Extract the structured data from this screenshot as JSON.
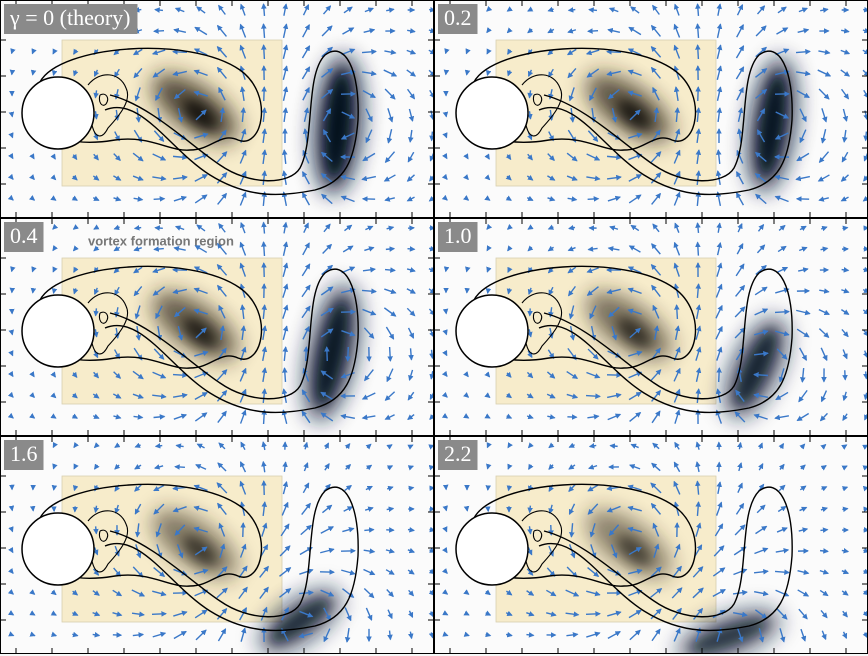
{
  "panels": [
    {
      "label": "γ = 0 (theory)"
    },
    {
      "label": "0.2"
    },
    {
      "label": "0.4"
    },
    {
      "label": "1.0"
    },
    {
      "label": "1.6"
    },
    {
      "label": "2.2"
    }
  ],
  "annotation": "vortex formation region"
}
